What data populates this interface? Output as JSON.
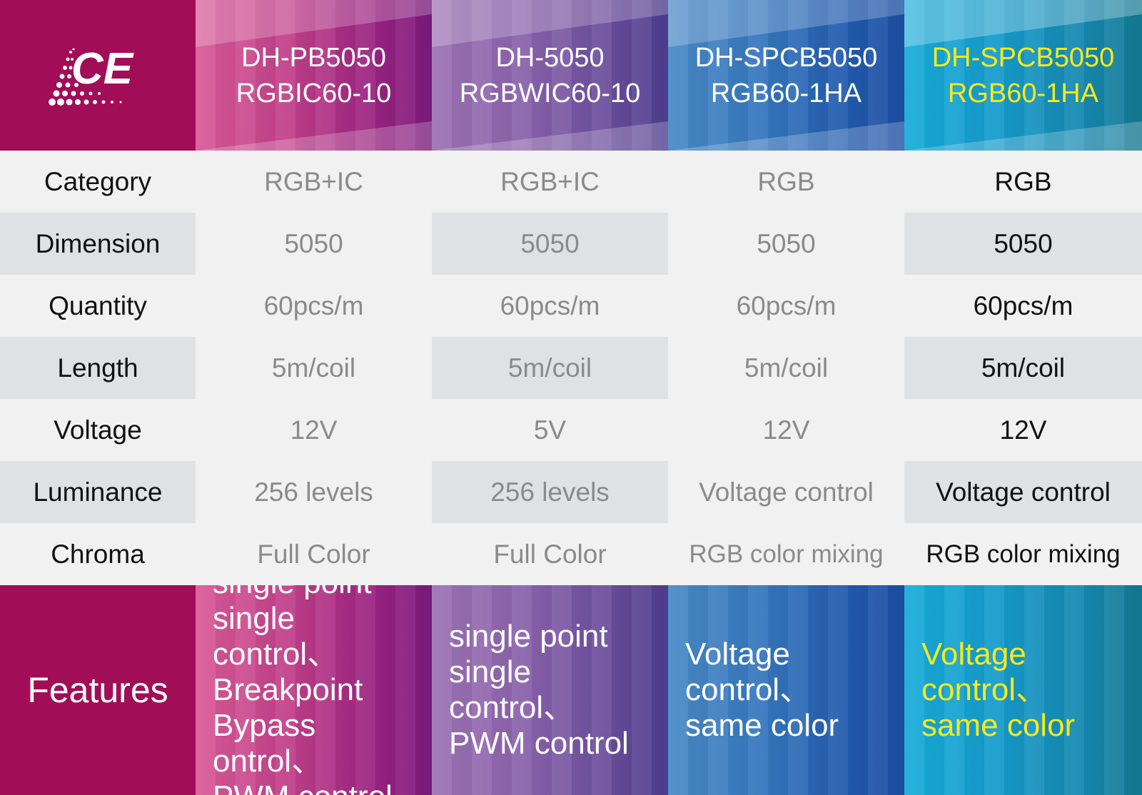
{
  "models": [
    {
      "line1": "DH-PB5050",
      "line2": "RGBIC60-10"
    },
    {
      "line1": "DH-5050",
      "line2": "RGBWIC60-10"
    },
    {
      "line1": "DH-SPCB5050",
      "line2": "RGB60-1HA"
    },
    {
      "line1": "DH-SPCB5050",
      "line2": "RGB60-1HA"
    }
  ],
  "rows": [
    {
      "label": "Category",
      "values": [
        "RGB+IC",
        "RGB+IC",
        "RGB",
        "RGB"
      ]
    },
    {
      "label": "Dimension",
      "values": [
        "5050",
        "5050",
        "5050",
        "5050"
      ]
    },
    {
      "label": "Quantity",
      "values": [
        "60pcs/m",
        "60pcs/m",
        "60pcs/m",
        "60pcs/m"
      ]
    },
    {
      "label": "Length",
      "values": [
        "5m/coil",
        "5m/coil",
        "5m/coil",
        "5m/coil"
      ]
    },
    {
      "label": "Voltage",
      "values": [
        "12V",
        "5V",
        "12V",
        "12V"
      ]
    },
    {
      "label": "Luminance",
      "values": [
        "256 levels",
        "256 levels",
        "Voltage control",
        "Voltage control"
      ]
    },
    {
      "label": "Chroma",
      "values": [
        "Full Color",
        "Full Color",
        "RGB color mixing",
        "RGB color mixing"
      ]
    }
  ],
  "features": {
    "label": "Features",
    "values": [
      "single point\nsingle control、\nBreakpoint\nBypass ontrol、\nPWM control",
      "single point\nsingle control、\nPWM control",
      "Voltage\ncontrol、\nsame color",
      "Voltage\ncontrol、\nsame color"
    ]
  },
  "brand": {
    "logo_text": "CE"
  },
  "colors": {
    "brand": "#a20d57",
    "col1": "#c1408a",
    "col2": "#8a62ab",
    "col3": "#3677be",
    "col4": "#169bcb",
    "highlight_text": "#f4ea1c"
  }
}
